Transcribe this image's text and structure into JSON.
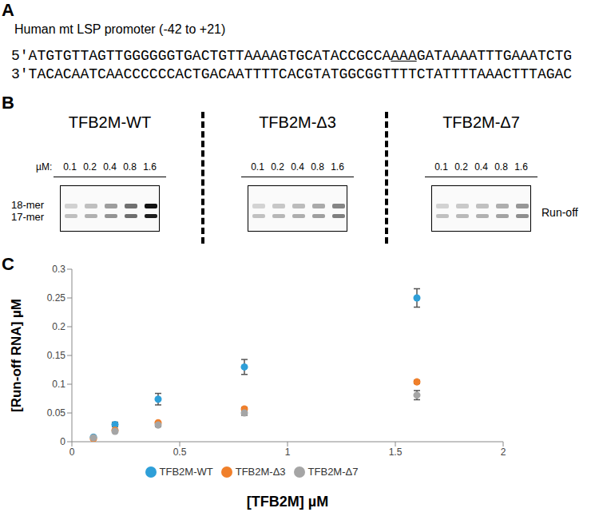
{
  "panel_a": {
    "letter": "A",
    "title": "Human mt LSP promoter (-42 to +21)",
    "top_strand": {
      "before": "5'ATGTGTTAGTTGGGGGGTGACTGTTAAAAGTGCATACCGCCA",
      "underlined": "AAA",
      "after": "GATAAAATTTGAAATCTG"
    },
    "bottom_strand": "3'TACACAATCAACCCCCCACTGACAATTTTCACGTATGGCGGTTTTCTATTTTAAACTTTAGAC"
  },
  "panel_b": {
    "letter": "B",
    "unit": "µM:",
    "concentrations": [
      0.1,
      0.2,
      0.4,
      0.8,
      1.6
    ],
    "gels": [
      "TFB2M-WT",
      "TFB2M-Δ3",
      "TFB2M-Δ7"
    ],
    "band_labels": [
      "18-mer",
      "17-mer"
    ],
    "right_label": "Run-off"
  },
  "chart_data": {
    "letter": "C",
    "type": "scatter",
    "x_label": "[TFB2M] µM",
    "y_label": "[Run-off RNA] µM",
    "xlim": [
      0,
      2
    ],
    "xticks": [
      0,
      0.5,
      1,
      1.5,
      2
    ],
    "ylim": [
      0,
      0.3
    ],
    "yticks": [
      0,
      0.05,
      0.1,
      0.15,
      0.2,
      0.25,
      0.3
    ],
    "grid": false,
    "legend": "bottom",
    "marker": "circle",
    "x": [
      0.1,
      0.2,
      0.4,
      0.8,
      1.6
    ],
    "series": [
      {
        "name": "TFB2M-WT",
        "color": "#2e9fd8",
        "values": [
          0.008,
          0.03,
          0.074,
          0.13,
          0.25
        ],
        "errors": [
          0.002,
          0.004,
          0.01,
          0.013,
          0.016
        ]
      },
      {
        "name": "TFB2M-Δ3",
        "color": "#f07f2a",
        "values": [
          0.005,
          0.02,
          0.033,
          0.057,
          0.104
        ],
        "errors": [
          0.001,
          0.002,
          0.002,
          0.003,
          0.003
        ]
      },
      {
        "name": "TFB2M-Δ7",
        "color": "#a5a5a5",
        "values": [
          0.007,
          0.018,
          0.029,
          0.05,
          0.081
        ],
        "errors": [
          0.001,
          0.002,
          0.003,
          0.004,
          0.008
        ]
      }
    ]
  }
}
